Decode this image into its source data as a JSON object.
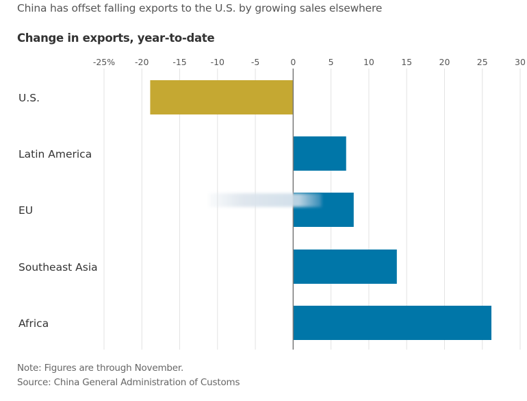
{
  "header": {
    "subtitle": "China has offset falling exports to the U.S. by growing sales elsewhere"
  },
  "footer": {
    "note": "Note: Figures are through November.",
    "source": "Source: China General Administration of Customs"
  },
  "colors": {
    "negative_bar": "#c5a832",
    "positive_bar": "#0076a8",
    "gridline": "#e2e2e2",
    "zero_line": "#777777"
  },
  "chart_data": {
    "type": "bar",
    "orientation": "horizontal",
    "title": "Change in exports, year-to-date",
    "xlabel": "",
    "ylabel": "",
    "xlim": [
      -25,
      30
    ],
    "grid": true,
    "ticks": [
      -25,
      -20,
      -15,
      -10,
      -5,
      0,
      5,
      10,
      15,
      20,
      25,
      30
    ],
    "tick_labels": [
      "-25%",
      "-20",
      "-15",
      "-10",
      "-5",
      "0",
      "5",
      "10",
      "15",
      "20",
      "25",
      "30"
    ],
    "categories": [
      "U.S.",
      "Latin America",
      "EU",
      "Southeast Asia",
      "Africa"
    ],
    "values": [
      -18.9,
      7.0,
      8.0,
      13.7,
      26.2
    ],
    "units": "%"
  }
}
